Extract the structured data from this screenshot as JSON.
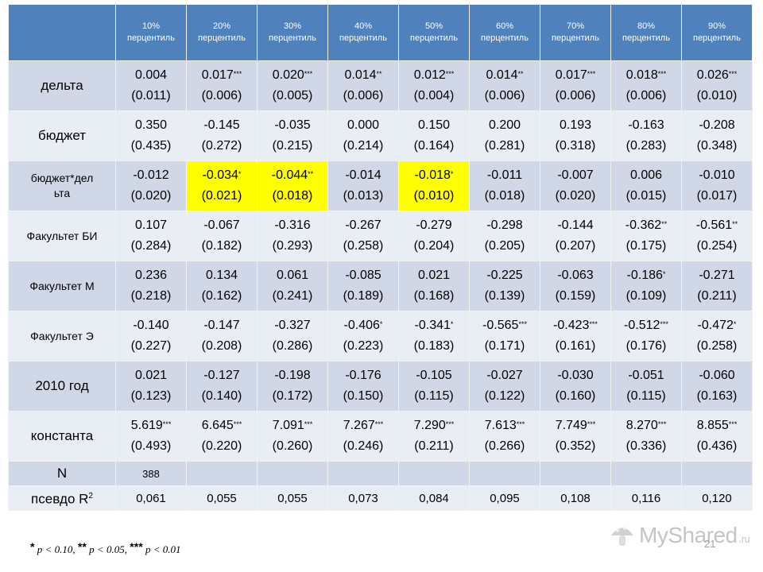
{
  "headers": [
    "",
    "10%\nперцентиль",
    "20%\nперцентиль",
    "30%\nперцентиль",
    "40%\nперцентиль",
    "50%\nперцентиль",
    "60%\nперцентиль",
    "70%\nперцентиль",
    "80%\nперцентиль",
    "90%\nперцентиль"
  ],
  "rows": [
    {
      "label": "дельта",
      "small": false,
      "cells": [
        {
          "v": "0.004",
          "s": "",
          "se": "(0.011)"
        },
        {
          "v": "0.017",
          "s": "***",
          "se": "(0.006)"
        },
        {
          "v": "0.020",
          "s": "***",
          "se": "(0.005)"
        },
        {
          "v": "0.014",
          "s": "**",
          "se": "(0.006)"
        },
        {
          "v": "0.012",
          "s": "***",
          "se": "(0.004)"
        },
        {
          "v": "0.014",
          "s": "**",
          "se": "(0.006)"
        },
        {
          "v": "0.017",
          "s": "***",
          "se": "(0.006)"
        },
        {
          "v": "0.018",
          "s": "***",
          "se": "(0.006)"
        },
        {
          "v": "0.026",
          "s": "***",
          "se": "(0.010)"
        }
      ]
    },
    {
      "label": "бюджет",
      "small": false,
      "cells": [
        {
          "v": "0.350",
          "s": "",
          "se": "(0.435)"
        },
        {
          "v": "-0.145",
          "s": "",
          "se": "(0.272)"
        },
        {
          "v": "-0.035",
          "s": "",
          "se": "(0.215)"
        },
        {
          "v": "0.000",
          "s": "",
          "se": "(0.214)"
        },
        {
          "v": "0.150",
          "s": "",
          "se": "(0.164)"
        },
        {
          "v": "0.200",
          "s": "",
          "se": "(0.281)"
        },
        {
          "v": "0.193",
          "s": "",
          "se": "(0.318)"
        },
        {
          "v": "-0.163",
          "s": "",
          "se": "(0.283)"
        },
        {
          "v": "-0.208",
          "s": "",
          "se": "(0.348)"
        }
      ]
    },
    {
      "label": "бюджет*дел\nьта",
      "small": true,
      "cells": [
        {
          "v": "-0.012",
          "s": "",
          "se": "(0.020)"
        },
        {
          "v": "-0.034",
          "s": "*",
          "se": "(0.021)",
          "hl": true
        },
        {
          "v": "-0.044",
          "s": "**",
          "se": "(0.018)",
          "hl": true
        },
        {
          "v": "-0.014",
          "s": "",
          "se": "(0.013)"
        },
        {
          "v": "-0.018",
          "s": "*",
          "se": "(0.010)",
          "hl": true
        },
        {
          "v": "-0.011",
          "s": "",
          "se": "(0.018)"
        },
        {
          "v": "-0.007",
          "s": "",
          "se": "(0.020)"
        },
        {
          "v": "0.006",
          "s": "",
          "se": "(0.015)"
        },
        {
          "v": "-0.010",
          "s": "",
          "se": "(0.017)"
        }
      ]
    },
    {
      "label": "Факультет БИ",
      "small": true,
      "cells": [
        {
          "v": "0.107",
          "s": "",
          "se": "(0.284)"
        },
        {
          "v": "-0.067",
          "s": "",
          "se": "(0.182)"
        },
        {
          "v": "-0.316",
          "s": "",
          "se": "(0.293)"
        },
        {
          "v": "-0.267",
          "s": "",
          "se": "(0.258)"
        },
        {
          "v": "-0.279",
          "s": "",
          "se": "(0.204)"
        },
        {
          "v": "-0.298",
          "s": "",
          "se": "(0.205)"
        },
        {
          "v": "-0.144",
          "s": "",
          "se": "(0.207)"
        },
        {
          "v": "-0.362",
          "s": "**",
          "se": "(0.175)"
        },
        {
          "v": "-0.561",
          "s": "**",
          "se": "(0.254)"
        }
      ]
    },
    {
      "label": "Факультет М",
      "small": true,
      "cells": [
        {
          "v": "0.236",
          "s": "",
          "se": "(0.218)"
        },
        {
          "v": "0.134",
          "s": "",
          "se": "(0.162)"
        },
        {
          "v": "0.061",
          "s": "",
          "se": "(0.241)"
        },
        {
          "v": "-0.085",
          "s": "",
          "se": "(0.189)"
        },
        {
          "v": "0.021",
          "s": "",
          "se": "(0.168)"
        },
        {
          "v": "-0.225",
          "s": "",
          "se": "(0.139)"
        },
        {
          "v": "-0.063",
          "s": "",
          "se": "(0.159)"
        },
        {
          "v": "-0.186",
          "s": "*",
          "se": "(0.109)"
        },
        {
          "v": "-0.271",
          "s": "",
          "se": "(0.211)"
        }
      ]
    },
    {
      "label": "Факультет Э",
      "small": true,
      "cells": [
        {
          "v": "-0.140",
          "s": "",
          "se": "(0.227)"
        },
        {
          "v": "-0.147",
          "s": "",
          "se": "(0.208)"
        },
        {
          "v": "-0.327",
          "s": "",
          "se": "(0.286)"
        },
        {
          "v": "-0.406",
          "s": "*",
          "se": "(0.223)"
        },
        {
          "v": "-0.341",
          "s": "*",
          "se": "(0.183)"
        },
        {
          "v": "-0.565",
          "s": "***",
          "se": "(0.171)"
        },
        {
          "v": "-0.423",
          "s": "***",
          "se": "(0.161)"
        },
        {
          "v": "-0.512",
          "s": "***",
          "se": "(0.176)"
        },
        {
          "v": "-0.472",
          "s": "*",
          "se": "(0.258)"
        }
      ]
    },
    {
      "label": "2010 год",
      "small": false,
      "cells": [
        {
          "v": "0.021",
          "s": "",
          "se": "(0.123)"
        },
        {
          "v": "-0.127",
          "s": "",
          "se": "(0.140)"
        },
        {
          "v": "-0.198",
          "s": "",
          "se": "(0.172)"
        },
        {
          "v": "-0.176",
          "s": "",
          "se": "(0.150)"
        },
        {
          "v": "-0.105",
          "s": "",
          "se": "(0.115)"
        },
        {
          "v": "-0.027",
          "s": "",
          "se": "(0.122)"
        },
        {
          "v": "-0.030",
          "s": "",
          "se": "(0.160)"
        },
        {
          "v": "-0.051",
          "s": "",
          "se": "(0.115)"
        },
        {
          "v": "-0.060",
          "s": "",
          "se": "(0.163)"
        }
      ]
    },
    {
      "label": "константа",
      "small": false,
      "cells": [
        {
          "v": "5.619",
          "s": "***",
          "se": "(0.493)"
        },
        {
          "v": "6.645",
          "s": "***",
          "se": "(0.220)"
        },
        {
          "v": "7.091",
          "s": "***",
          "se": "(0.260)"
        },
        {
          "v": "7.267",
          "s": "***",
          "se": "(0.246)"
        },
        {
          "v": "7.290",
          "s": "***",
          "se": "(0.211)"
        },
        {
          "v": "7.613",
          "s": "***",
          "se": "(0.266)"
        },
        {
          "v": "7.749",
          "s": "***",
          "se": "(0.352)"
        },
        {
          "v": "8.270",
          "s": "***",
          "se": "(0.336)"
        },
        {
          "v": "8.855",
          "s": "***",
          "se": "(0.436)"
        }
      ]
    }
  ],
  "n_row": {
    "label": "N",
    "value": "388"
  },
  "r2_row": {
    "label": "псевдо R",
    "sup": "2",
    "values": [
      "0,061",
      "0,055",
      "0,055",
      "0,073",
      "0,084",
      "0,095",
      "0,108",
      "0,116",
      "0,120"
    ]
  },
  "footnote": {
    "s1": "*",
    "t1": "p < 0.10,",
    "s2": "**",
    "t2": "p < 0.05,",
    "s3": "***",
    "t3": "p < 0.01"
  },
  "page_number": "21",
  "watermark": {
    "text": "MyShared",
    "suffix": ".ru",
    "icon": "mushroom-logo-icon"
  },
  "colors": {
    "header": "#4f81bd",
    "row_odd": "#d0d8e8",
    "row_even": "#e9edf4",
    "highlight": "#ffff00"
  }
}
